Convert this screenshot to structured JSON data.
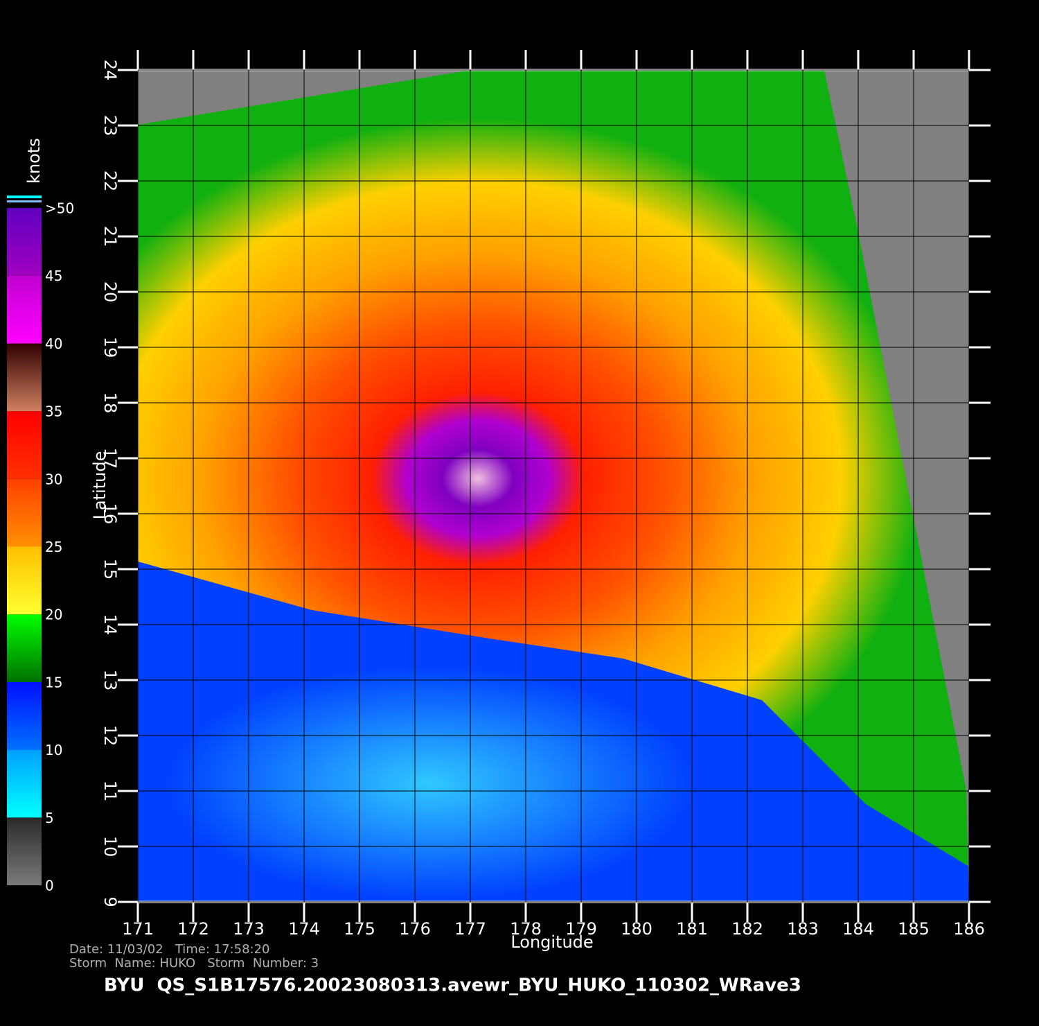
{
  "title": "BYU  QS_S1B17576.20023080313.avewr_BYU_HUKO_110302_WRave3",
  "info": {
    "line1": "Date: 11/03/02   Time: 17:58:20",
    "line2": "Storm  Name: HUKO   Storm  Number: 3"
  },
  "map": {
    "xlabel": "Longitude",
    "ylabel": "Latitude",
    "xlim": [
      171,
      186
    ],
    "ylim": [
      9,
      24
    ],
    "xticks": [
      171,
      172,
      173,
      174,
      175,
      176,
      177,
      178,
      179,
      180,
      181,
      182,
      183,
      184,
      185,
      186
    ],
    "yticks": [
      9,
      10,
      11,
      12,
      13,
      14,
      15,
      16,
      17,
      18,
      19,
      20,
      21,
      22,
      23,
      24
    ]
  },
  "colorbar": {
    "unit": "knots",
    "lim": [
      0,
      50
    ],
    "ticks": [
      0,
      5,
      10,
      15,
      20,
      25,
      30,
      35,
      40,
      45,
      {
        "value": 50,
        "label": ">50"
      }
    ],
    "colors": [
      [
        "#7a7a7a",
        "#2a2a2a"
      ],
      [
        "#00ffff",
        "#00a0ff"
      ],
      [
        "#0070ff",
        "#0010ff"
      ],
      [
        "#007000",
        "#00ff00"
      ],
      [
        "#ffff30",
        "#ffc000"
      ],
      [
        "#ff9000",
        "#ff4000"
      ],
      [
        "#ff3000",
        "#ff0000"
      ],
      [
        "#d08060",
        "#300000"
      ],
      [
        "#ff00ff",
        "#c000d0"
      ],
      [
        "#a000c0",
        "#6000c0"
      ]
    ]
  }
}
